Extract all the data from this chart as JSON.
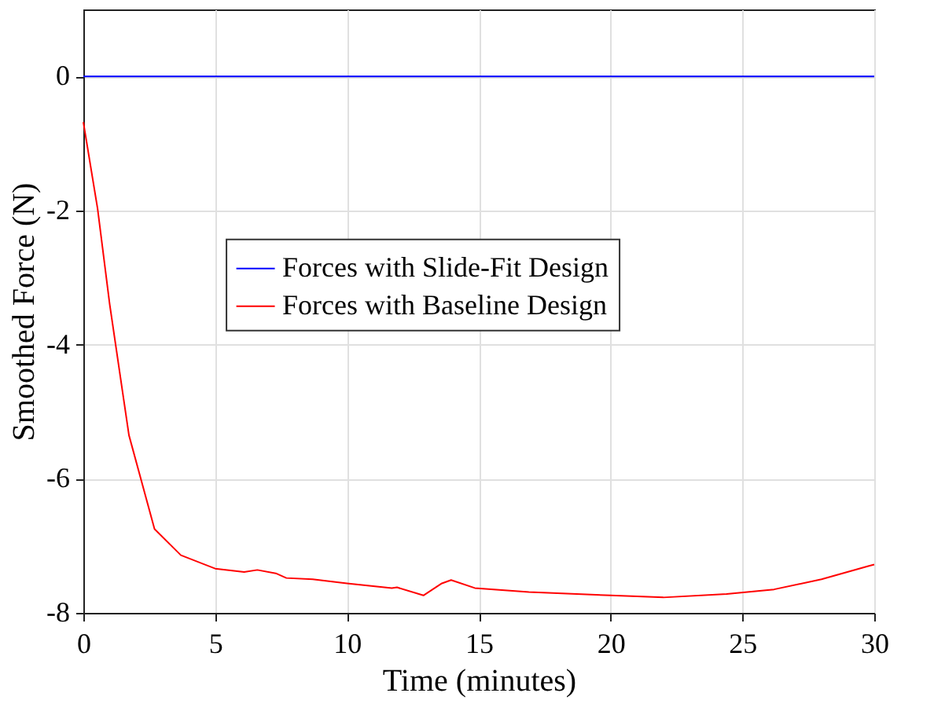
{
  "chart_data": {
    "type": "line",
    "xlabel": "Time (minutes)",
    "ylabel": "Smoothed Force (N)",
    "xlim": [
      0,
      30
    ],
    "xticks": [
      0,
      5,
      10,
      15,
      20,
      25,
      30
    ],
    "ylim": [
      -8,
      1
    ],
    "yticks": [
      -8,
      -6,
      -4,
      -2,
      0
    ],
    "grid": true,
    "legend": "center",
    "line_style": "solid",
    "marker": "none",
    "series": [
      {
        "name": "Forces with Slide-Fit Design",
        "color": "#0000ff",
        "x": [
          0,
          5,
          10,
          15,
          20,
          25,
          30
        ],
        "values": [
          0,
          0,
          0,
          0,
          0,
          0,
          0
        ]
      },
      {
        "name": "Forces with Baseline Design",
        "color": "#ff0000",
        "x": [
          0,
          0.54,
          1.0,
          1.73,
          2.7,
          3.7,
          5.0,
          6.1,
          6.6,
          7.3,
          7.7,
          8.7,
          10.0,
          11.7,
          11.9,
          12.9,
          13.6,
          13.95,
          14.85,
          16.9,
          20.0,
          22.0,
          24.4,
          26.2,
          28.0,
          29.8,
          30.0
        ],
        "values": [
          -0.68,
          -1.97,
          -3.4,
          -5.35,
          -6.75,
          -7.14,
          -7.34,
          -7.39,
          -7.36,
          -7.41,
          -7.48,
          -7.5,
          -7.56,
          -7.63,
          -7.62,
          -7.74,
          -7.56,
          -7.51,
          -7.63,
          -7.69,
          -7.74,
          -7.77,
          -7.72,
          -7.65,
          -7.5,
          -7.3,
          -7.28
        ]
      }
    ]
  }
}
